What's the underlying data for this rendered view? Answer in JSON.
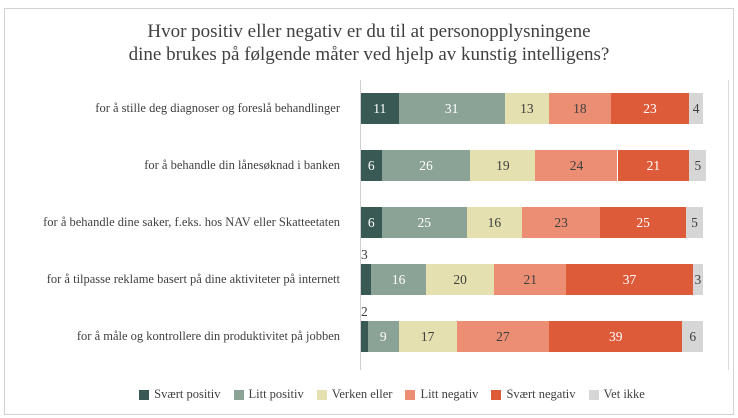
{
  "title": {
    "line1": "Hvor positiv eller negativ er du til at personopplysningene",
    "line2": "dine brukes på følgende måter ved hjelp av kunstig intelligens?"
  },
  "colors": {
    "text": "#3f3f3f",
    "title_text": "#404040",
    "axis_line": "#cfcfcf",
    "frame_border": "#d2d2d2",
    "background": "#ffffff",
    "value_text_light": "#ffffff",
    "value_text_dark": "#3f3f3f"
  },
  "chart_data": {
    "type": "bar",
    "variant": "horizontal-stacked-percent",
    "title": "Hvor positiv eller negativ er du til at personopplysningene dine brukes på følgende måter ved hjelp av kunstig intelligens?",
    "unit": "percent",
    "xlim": [
      0,
      107
    ],
    "grid": false,
    "legend_position": "bottom",
    "categories": [
      "for å stille deg diagnoser og foreslå behandlinger",
      "for å behandle din lånesøknad i banken",
      "for å behandle dine saker, f.eks. hos NAV eller Skatteetaten",
      "for å tilpasse reklame basert på dine aktiviteter på internett",
      "for å måle og kontrollere din produktivitet på jobben"
    ],
    "series": [
      {
        "name": "Svært positiv",
        "color": "#395a54",
        "value_text_color": "#ffffff",
        "values": [
          11,
          6,
          6,
          3,
          2
        ]
      },
      {
        "name": "Litt positiv",
        "color": "#8ba396",
        "value_text_color": "#ffffff",
        "values": [
          31,
          26,
          25,
          16,
          9
        ]
      },
      {
        "name": "Verken eller",
        "color": "#e4e0b0",
        "value_text_color": "#3f3f3f",
        "values": [
          13,
          19,
          16,
          20,
          17
        ]
      },
      {
        "name": "Litt negativ",
        "color": "#ec8e74",
        "value_text_color": "#3f3f3f",
        "values": [
          18,
          24,
          23,
          21,
          27
        ]
      },
      {
        "name": "Svært negativ",
        "color": "#de5b3a",
        "value_text_color": "#ffffff",
        "values": [
          23,
          21,
          25,
          37,
          39
        ]
      },
      {
        "name": "Vet ikke",
        "color": "#d6d6d6",
        "value_text_color": "#3f3f3f",
        "values": [
          4,
          5,
          5,
          3,
          6
        ]
      }
    ]
  }
}
